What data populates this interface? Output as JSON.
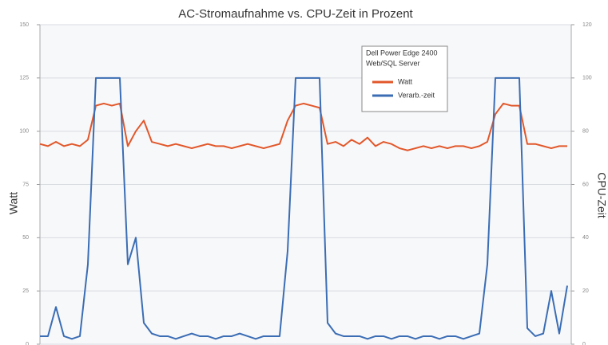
{
  "chart_data": {
    "type": "line",
    "title": "AC-Stromaufnahme vs. CPU-Zeit in Prozent",
    "y_label": "Watt",
    "y2_label": "CPU-Zeit",
    "legend_title": [
      "Dell Power Edge 2400",
      "Web/SQL Server"
    ],
    "x": [
      0,
      1,
      2,
      3,
      4,
      5,
      6,
      7,
      8,
      9,
      10,
      11,
      12,
      13,
      14,
      15,
      16,
      17,
      18,
      19,
      20,
      21,
      22,
      23,
      24,
      25,
      26,
      27,
      28,
      29,
      30,
      31,
      32,
      33,
      34,
      35,
      36,
      37,
      38,
      39,
      40,
      41,
      42,
      43,
      44,
      45,
      46,
      47,
      48,
      49,
      50,
      51,
      52,
      53,
      54,
      55,
      56,
      57,
      58,
      59,
      60,
      61,
      62,
      63,
      64,
      65,
      66
    ],
    "xlim": [
      0,
      66.5
    ],
    "ylim": [
      0,
      150
    ],
    "yticks": [
      0,
      25,
      50,
      75,
      100,
      125,
      150
    ],
    "y2lim": [
      0,
      120
    ],
    "y2ticks": [
      0,
      20,
      40,
      60,
      80,
      100,
      120
    ],
    "grid": true,
    "legend": "top-right",
    "series": [
      {
        "name": "Watt",
        "color": "#e2572a",
        "values": [
          94,
          93,
          95,
          93,
          94,
          93,
          96,
          112,
          113,
          112,
          113,
          93,
          100,
          105,
          95,
          94,
          93,
          94,
          93,
          92,
          93,
          94,
          93,
          93,
          92,
          93,
          94,
          93,
          92,
          93,
          94,
          105,
          112,
          113,
          112,
          111,
          94,
          95,
          93,
          96,
          94,
          97,
          93,
          95,
          94,
          92,
          91,
          92,
          93,
          92,
          93,
          92,
          93,
          93,
          92,
          93,
          95,
          108,
          113,
          112,
          112,
          94,
          94,
          93,
          92,
          93,
          93
        ]
      },
      {
        "name": "Verarb.-zeit",
        "color": "#3b6db4",
        "axis": "y2",
        "values": [
          3,
          3,
          14,
          3,
          2,
          3,
          30,
          100,
          100,
          100,
          100,
          30,
          40,
          8,
          4,
          3,
          3,
          2,
          3,
          4,
          3,
          3,
          2,
          3,
          3,
          4,
          3,
          2,
          3,
          3,
          3,
          35,
          100,
          100,
          100,
          100,
          8,
          4,
          3,
          3,
          3,
          2,
          3,
          3,
          2,
          3,
          3,
          2,
          3,
          3,
          2,
          3,
          3,
          2,
          3,
          4,
          30,
          100,
          100,
          100,
          100,
          6,
          3,
          4,
          20,
          4,
          22
        ]
      }
    ]
  }
}
